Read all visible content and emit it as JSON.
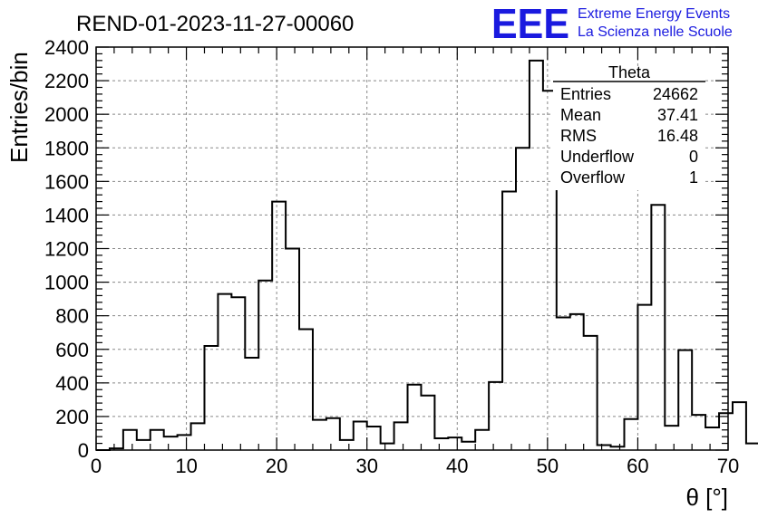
{
  "chart_data": {
    "type": "bar",
    "title": "REND-01-2023-11-27-00060",
    "xlabel": "θ [°]",
    "ylabel": "Entries/bin",
    "xlim": [
      0,
      70
    ],
    "ylim": [
      0,
      2400
    ],
    "bin_width": 1.5,
    "x_start": 0,
    "values": [
      0,
      10,
      120,
      60,
      120,
      80,
      90,
      160,
      620,
      930,
      910,
      550,
      1010,
      1480,
      1200,
      720,
      180,
      190,
      60,
      170,
      140,
      40,
      165,
      390,
      325,
      70,
      75,
      50,
      120,
      405,
      1540,
      1800,
      2320,
      2140,
      790,
      810,
      680,
      30,
      20,
      185,
      865,
      1460,
      145,
      595,
      210,
      135,
      220,
      285,
      40,
      0
    ],
    "xticks": [
      0,
      10,
      20,
      30,
      40,
      50,
      60,
      70
    ],
    "xtick_labels": [
      "0",
      "10",
      "20",
      "30",
      "40",
      "50",
      "60",
      "70"
    ],
    "yticks": [
      0,
      200,
      400,
      600,
      800,
      1000,
      1200,
      1400,
      1600,
      1800,
      2000,
      2200,
      2400
    ],
    "ytick_labels": [
      "0",
      "200",
      "400",
      "600",
      "800",
      "1000",
      "1200",
      "1400",
      "1600",
      "1800",
      "2000",
      "2200",
      "2400"
    ],
    "grid": true,
    "legend": "none",
    "line_color": "#000000",
    "stats_box": {
      "title": "Theta",
      "position": "top-right",
      "rows": [
        {
          "label": "Entries",
          "value": "24662"
        },
        {
          "label": "Mean",
          "value": "37.41"
        },
        {
          "label": "RMS",
          "value": "16.48"
        },
        {
          "label": "Underflow",
          "value": "0"
        },
        {
          "label": "Overflow",
          "value": "1"
        }
      ]
    }
  },
  "logo": {
    "mark": "EEE",
    "line1": "Extreme Energy Events",
    "line2": "La Scienza nelle Scuole",
    "color": "#1a1adf"
  }
}
